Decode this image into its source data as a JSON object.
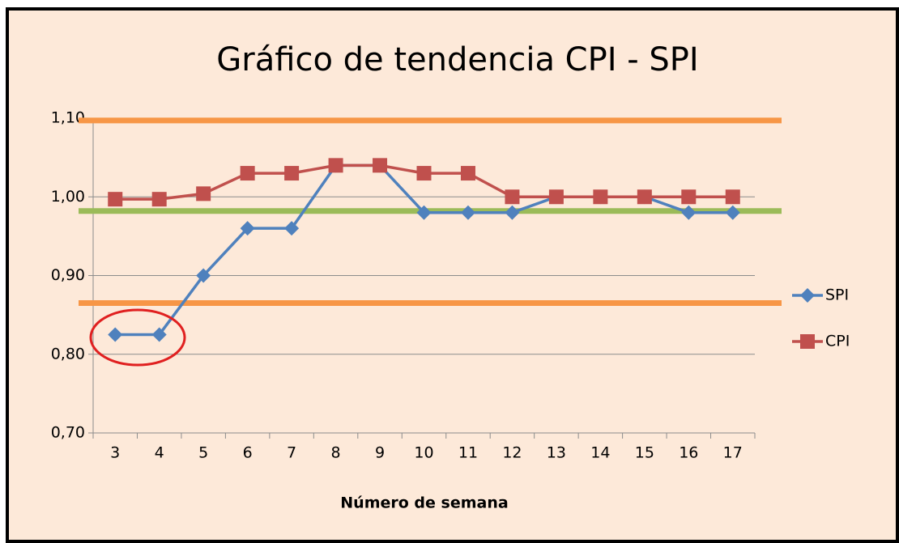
{
  "chart_data": {
    "type": "line",
    "title": "Gráfico de tendencia CPI - SPI",
    "x_label": "Número de semana",
    "categories": [
      "3",
      "4",
      "5",
      "6",
      "7",
      "8",
      "9",
      "10",
      "11",
      "12",
      "13",
      "14",
      "15",
      "16",
      "17"
    ],
    "series": [
      {
        "name": "SPI",
        "color": "#4f81bd",
        "marker": "diamond",
        "values": [
          0.825,
          0.825,
          0.9,
          0.96,
          0.96,
          1.04,
          1.04,
          0.98,
          0.98,
          0.98,
          1.0,
          1.0,
          1.0,
          0.98,
          0.98
        ]
      },
      {
        "name": "CPI",
        "color": "#c0504d",
        "marker": "square",
        "values": [
          0.997,
          0.997,
          1.004,
          1.03,
          1.03,
          1.04,
          1.04,
          1.03,
          1.03,
          1.0,
          1.0,
          1.0,
          1.0,
          1.0,
          1.0
        ]
      }
    ],
    "reference_lines": [
      {
        "value": 1.097,
        "color": "#f79646"
      },
      {
        "value": 0.982,
        "color": "#9bbb59"
      },
      {
        "value": 0.865,
        "color": "#f79646"
      }
    ],
    "ylim": [
      0.7,
      1.1
    ],
    "yticks": [
      {
        "value": 0.7,
        "label": "0,70"
      },
      {
        "value": 0.8,
        "label": "0,80"
      },
      {
        "value": 0.9,
        "label": "0,90"
      },
      {
        "value": 1.0,
        "label": "1,00"
      },
      {
        "value": 1.1,
        "label": "1,10"
      }
    ],
    "grid": true,
    "legend": "right"
  }
}
